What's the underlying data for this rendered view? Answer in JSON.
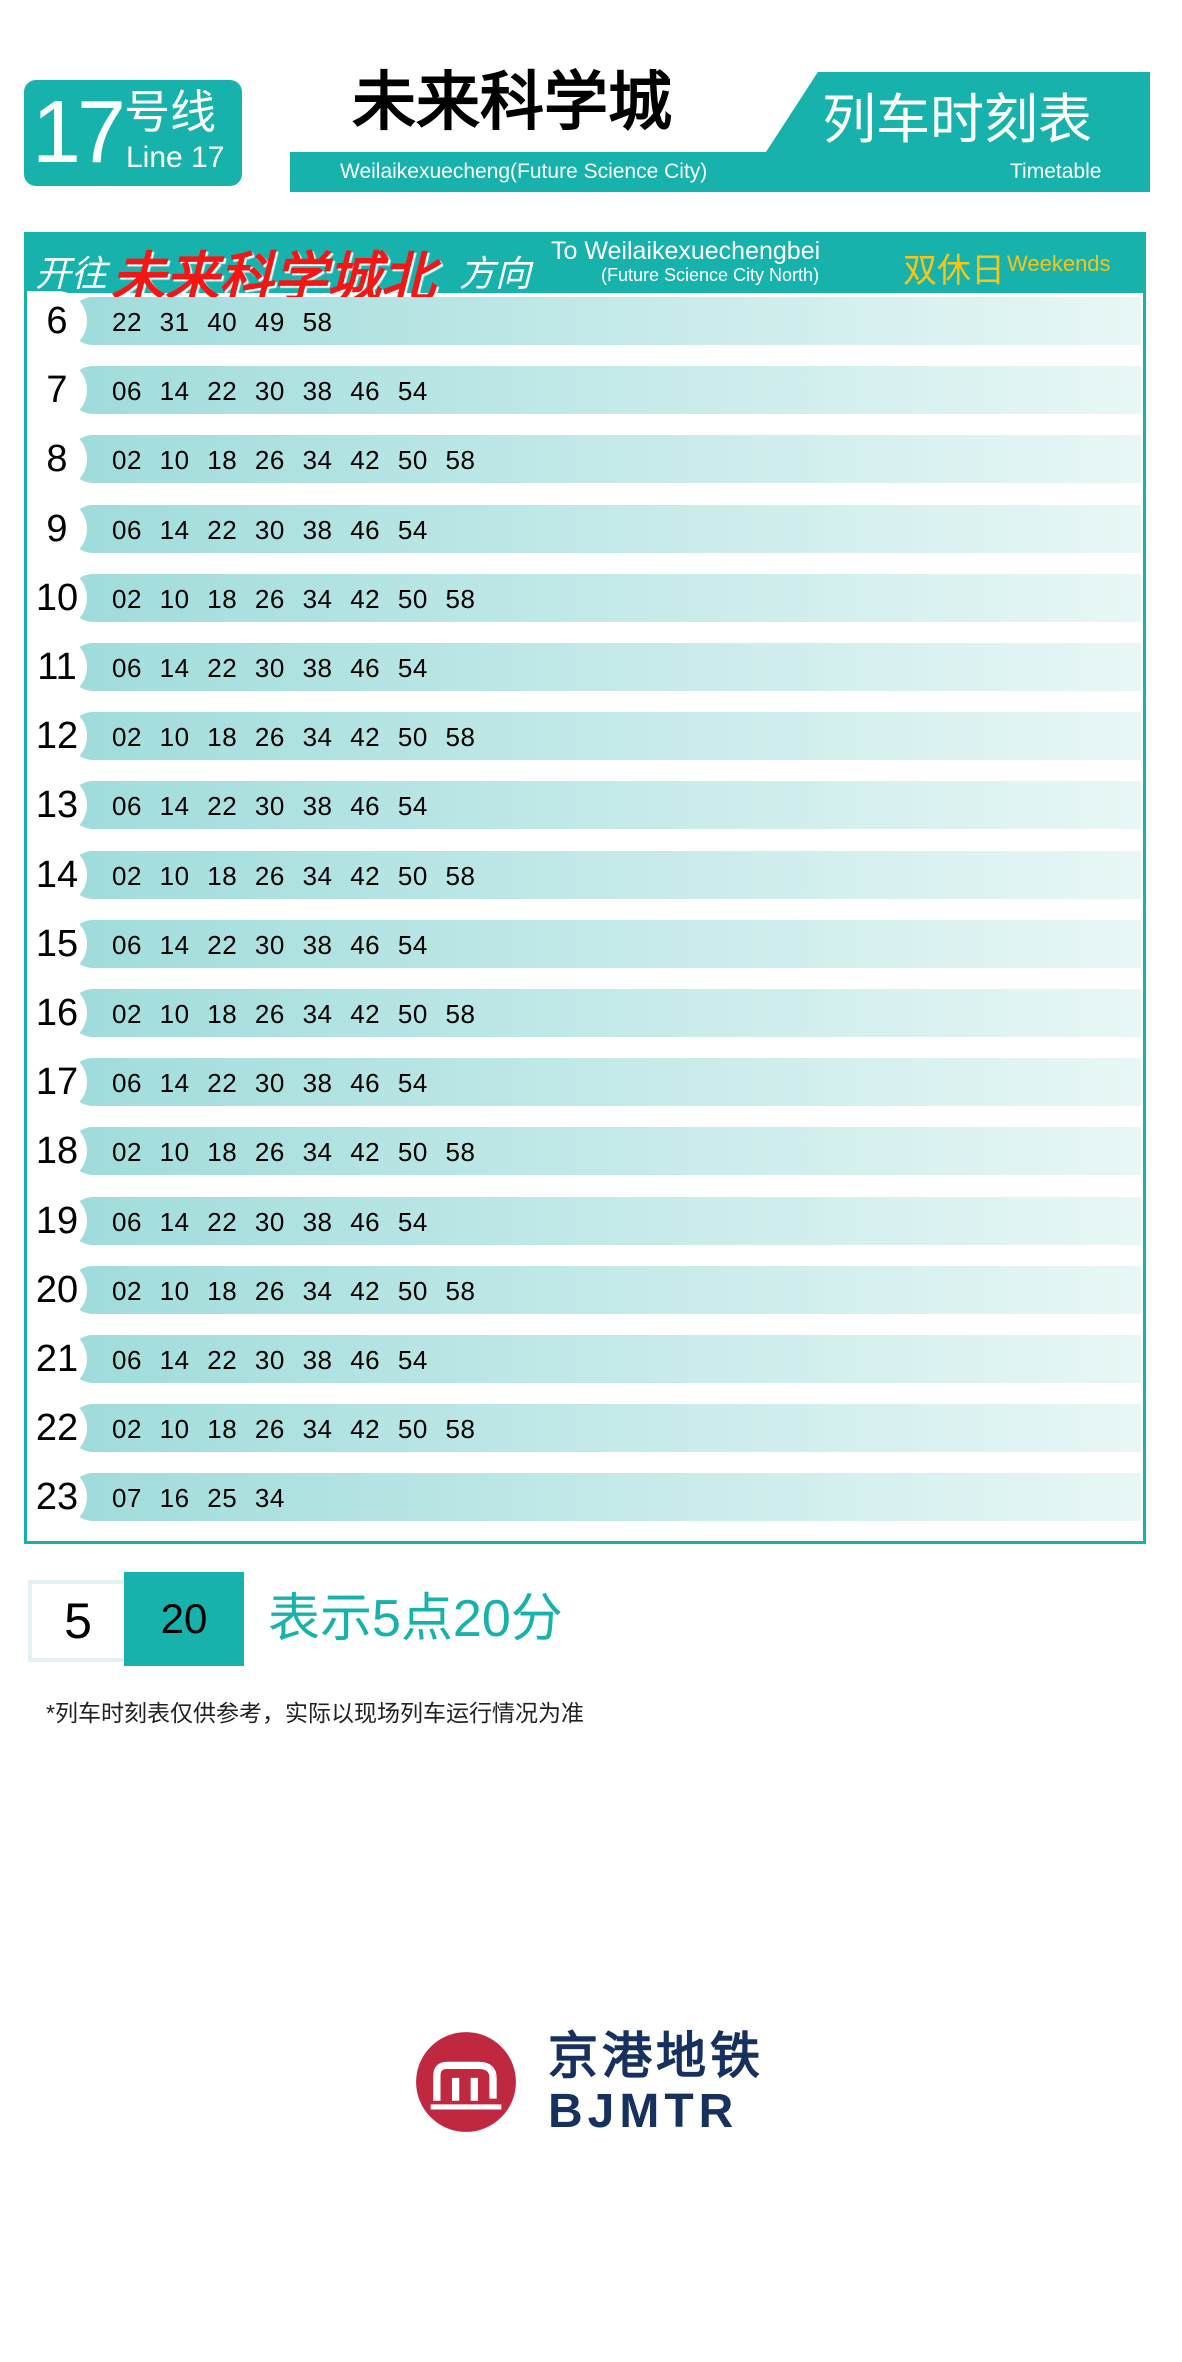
{
  "header": {
    "line_number": "17",
    "line_cn": "号线",
    "line_en": "Line 17",
    "station_cn": "未来科学城",
    "station_en": "Weilaikexuecheng(Future Science City)",
    "timetable_cn": "列车时刻表",
    "timetable_en": "Timetable"
  },
  "direction": {
    "prefix": "开往",
    "destination": "未来科学城北",
    "suffix": "方向",
    "to_en": "To Weilaikexuechengbei",
    "to_en_sub": "(Future Science City North)",
    "day_cn": "双休日",
    "day_en": "Weekends"
  },
  "schedule": [
    {
      "hour": "6",
      "minutes": "22 31 40 49 58"
    },
    {
      "hour": "7",
      "minutes": "06 14 22 30 38 46 54"
    },
    {
      "hour": "8",
      "minutes": "02 10 18 26 34 42 50 58"
    },
    {
      "hour": "9",
      "minutes": "06 14 22 30 38 46 54"
    },
    {
      "hour": "10",
      "minutes": "02 10 18 26 34 42 50 58"
    },
    {
      "hour": "11",
      "minutes": "06 14 22 30 38 46 54"
    },
    {
      "hour": "12",
      "minutes": "02 10 18 26 34 42 50 58"
    },
    {
      "hour": "13",
      "minutes": "06 14 22 30 38 46 54"
    },
    {
      "hour": "14",
      "minutes": "02 10 18 26 34 42 50 58"
    },
    {
      "hour": "15",
      "minutes": "06 14 22 30 38 46 54"
    },
    {
      "hour": "16",
      "minutes": "02 10 18 26 34 42 50 58"
    },
    {
      "hour": "17",
      "minutes": "06 14 22 30 38 46 54"
    },
    {
      "hour": "18",
      "minutes": "02 10 18 26 34 42 50 58"
    },
    {
      "hour": "19",
      "minutes": "06 14 22 30 38 46 54"
    },
    {
      "hour": "20",
      "minutes": "02 10 18 26 34 42 50 58"
    },
    {
      "hour": "21",
      "minutes": "06 14 22 30 38 46 54"
    },
    {
      "hour": "22",
      "minutes": "02 10 18 26 34 42 50 58"
    },
    {
      "hour": "23",
      "minutes": "07 16 25 34"
    }
  ],
  "legend": {
    "hour": "5",
    "minute": "20",
    "text": "表示5点20分"
  },
  "note": "*列车时刻表仅供参考，实际以现场列车运行情况为准",
  "logo": {
    "cn": "京港地铁",
    "en": "BJMTR"
  },
  "colors": {
    "teal": "#17b2ac",
    "red": "#f41515",
    "yellow": "#f7c515",
    "navy": "#17315e",
    "logo_red": "#c0283f"
  }
}
